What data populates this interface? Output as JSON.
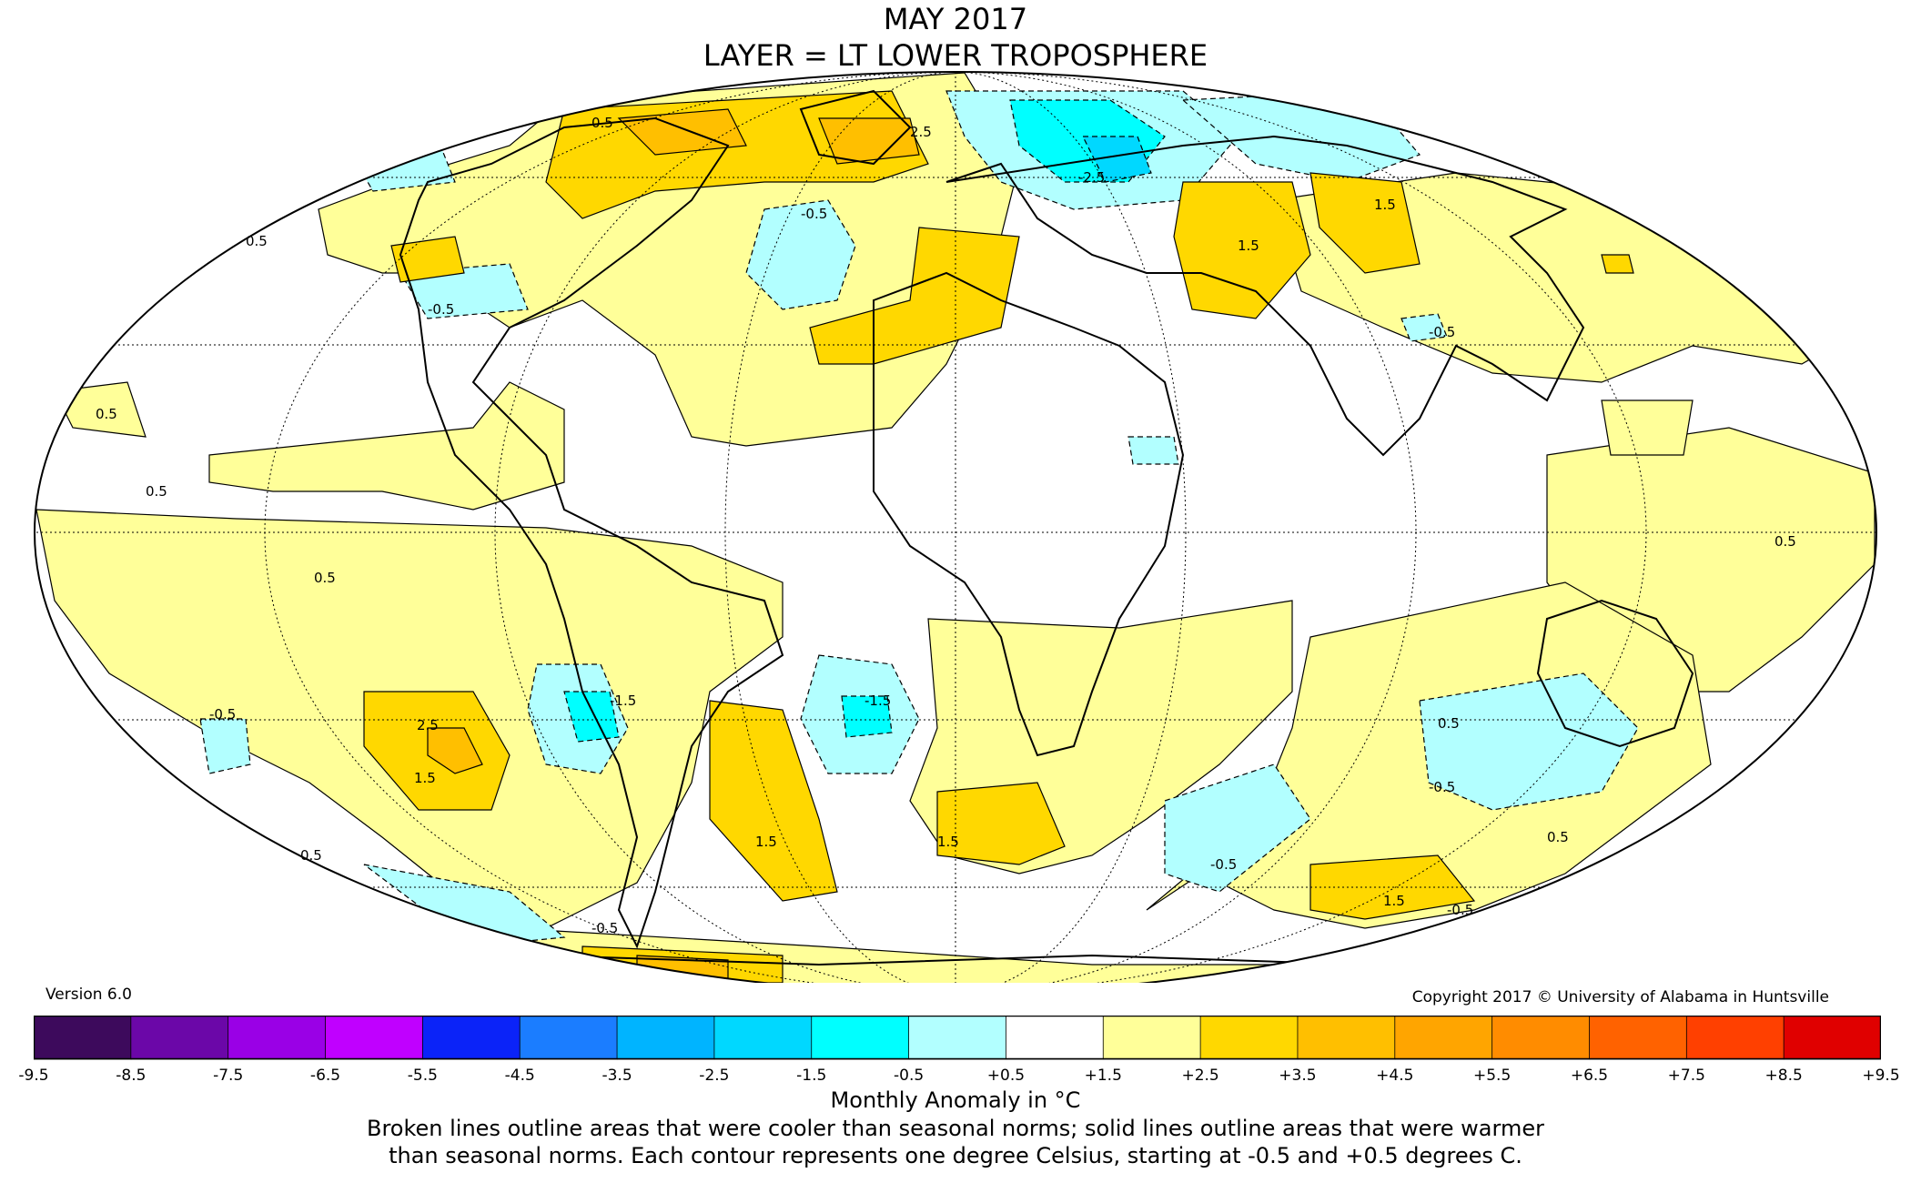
{
  "title": {
    "line1": "MAY 2017",
    "line2": "LAYER = LT LOWER TROPOSPHERE"
  },
  "version": "Version 6.0",
  "copyright": "Copyright 2017 © University of Alabama in Huntsville",
  "colorbar": {
    "ticks": [
      "-9.5",
      "-8.5",
      "-7.5",
      "-6.5",
      "-5.5",
      "-4.5",
      "-3.5",
      "-2.5",
      "-1.5",
      "-0.5",
      "+0.5",
      "+1.5",
      "+2.5",
      "+3.5",
      "+4.5",
      "+5.5",
      "+6.5",
      "+7.5",
      "+8.5",
      "+9.5"
    ],
    "colors": [
      "#3d0a5c",
      "#6b07a8",
      "#9a00e6",
      "#c000ff",
      "#00008f",
      "#0b23f8",
      "#1b7dff",
      "#00b4ff",
      "#00d8ff",
      "#00ffff",
      "#b2ffff",
      "#ffffff",
      "#ffff99",
      "#ffd800",
      "#ffbf00",
      "#ffa500",
      "#ff8c00",
      "#ff6200",
      "#ff4000",
      "#e00000",
      "#b30000"
    ],
    "unit_label": "Monthly Anomaly in °C"
  },
  "note": {
    "line1": "Broken lines outline areas that were cooler than seasonal norms; solid lines outline areas that were warmer",
    "line2": "than seasonal norms. Each contour represents one degree Celsius, starting at -0.5 and +0.5 degrees C."
  },
  "map": {
    "projection": "Mollweide",
    "contour_labels": [
      "0.5",
      "-0.5",
      "2.5",
      "1.5",
      "-1.5",
      "-2.5"
    ],
    "colors": {
      "warm1": "#ffff99",
      "warm2": "#ffd800",
      "warm3": "#ffbf00",
      "cool1": "#b2ffff",
      "cool2": "#00ffff",
      "cool3": "#00d8ff",
      "coast": "#000000"
    }
  }
}
